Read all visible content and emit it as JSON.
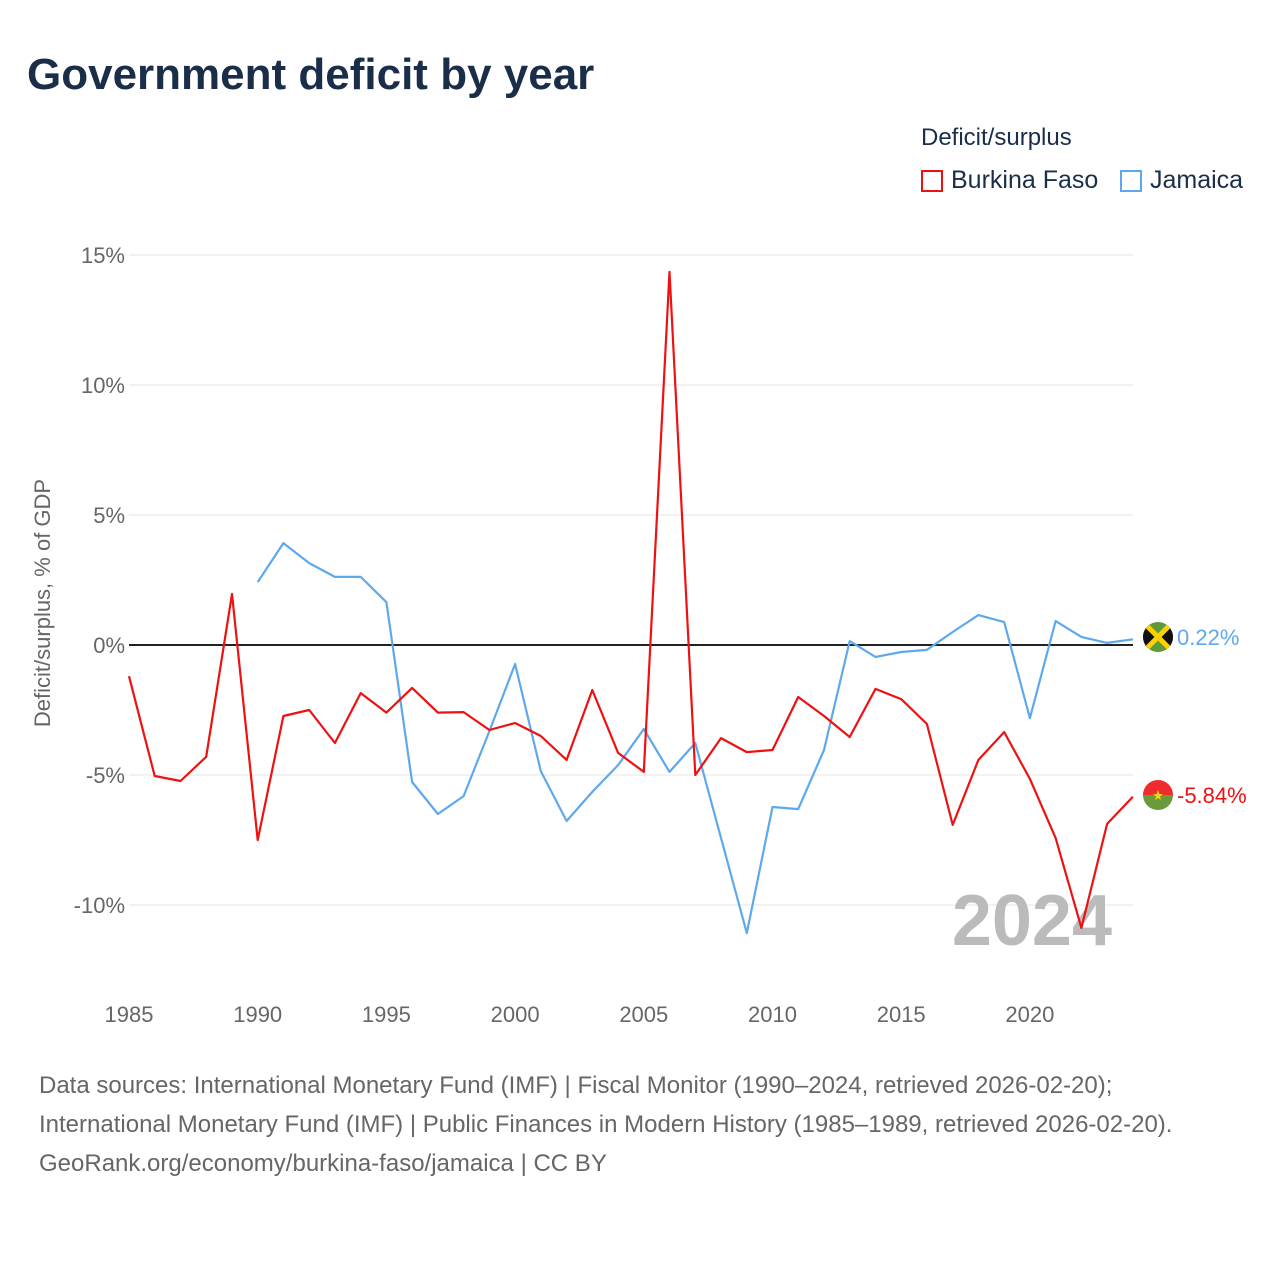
{
  "chart_data": {
    "type": "line",
    "title": "Government deficit by year",
    "ylabel": "Deficit/surplus, % of GDP",
    "xlabel": "",
    "legend_title": "Deficit/surplus",
    "legend_position": "top-right",
    "xlim": [
      1985,
      2024
    ],
    "ylim": [
      -12,
      16
    ],
    "x_ticks": [
      1985,
      1990,
      1995,
      2000,
      2005,
      2010,
      2015,
      2020
    ],
    "y_ticks": [
      15,
      10,
      5,
      0,
      -5,
      -10
    ],
    "y_tick_labels": [
      "15%",
      "10%",
      "5%",
      "0%",
      "-5%",
      "-10%"
    ],
    "year_label": "2024",
    "grid": true,
    "series": [
      {
        "name": "Burkina Faso",
        "color": "#ee1111",
        "end_label": "-5.84%",
        "x": [
          1985,
          1986,
          1987,
          1988,
          1989,
          1990,
          1991,
          1992,
          1993,
          1994,
          1995,
          1996,
          1997,
          1998,
          1999,
          2000,
          2001,
          2002,
          2003,
          2004,
          2005,
          2006,
          2007,
          2008,
          2009,
          2010,
          2011,
          2012,
          2013,
          2014,
          2015,
          2016,
          2017,
          2018,
          2019,
          2020,
          2021,
          2022,
          2023,
          2024
        ],
        "values": [
          -1.2,
          -5.04,
          -5.23,
          -4.3,
          1.96,
          -7.5,
          -2.73,
          -2.5,
          -3.77,
          -1.85,
          -2.6,
          -1.65,
          -2.6,
          -2.58,
          -3.27,
          -3.0,
          -3.5,
          -4.42,
          -1.73,
          -4.15,
          -4.88,
          14.35,
          -5.0,
          -3.58,
          -4.12,
          -4.04,
          -2.0,
          -2.73,
          -3.54,
          -1.69,
          -2.08,
          -3.04,
          -6.92,
          -4.42,
          -3.35,
          -5.15,
          -7.42,
          -10.88,
          -6.88,
          -5.84
        ]
      },
      {
        "name": "Jamaica",
        "color": "#5ea8ee",
        "end_label": "0.22%",
        "x": [
          1990,
          1991,
          1992,
          1993,
          1994,
          1995,
          1996,
          1997,
          1998,
          1999,
          2000,
          2001,
          2002,
          2003,
          2004,
          2005,
          2006,
          2007,
          2008,
          2009,
          2010,
          2011,
          2012,
          2013,
          2014,
          2015,
          2016,
          2017,
          2018,
          2019,
          2020,
          2021,
          2022,
          2023,
          2024
        ],
        "values": [
          2.42,
          3.92,
          3.15,
          2.62,
          2.62,
          1.65,
          -5.27,
          -6.5,
          -5.81,
          -3.31,
          -0.73,
          -4.85,
          -6.77,
          -5.65,
          -4.62,
          -3.23,
          -4.88,
          -3.77,
          -7.42,
          -11.08,
          -6.23,
          -6.31,
          -4.04,
          0.15,
          -0.46,
          -0.27,
          -0.19,
          0.5,
          1.15,
          0.88,
          -2.81,
          0.92,
          0.31,
          0.08,
          0.22
        ]
      }
    ]
  },
  "footer": {
    "sources": "Data sources: International Monetary Fund (IMF) | Fiscal Monitor (1990–2024, retrieved 2026-02-20); International Monetary Fund (IMF) | Public Finances in Modern History (1985–1989, retrieved 2026-02-20).",
    "credit": "GeoRank.org/economy/burkina-faso/jamaica | CC BY"
  }
}
